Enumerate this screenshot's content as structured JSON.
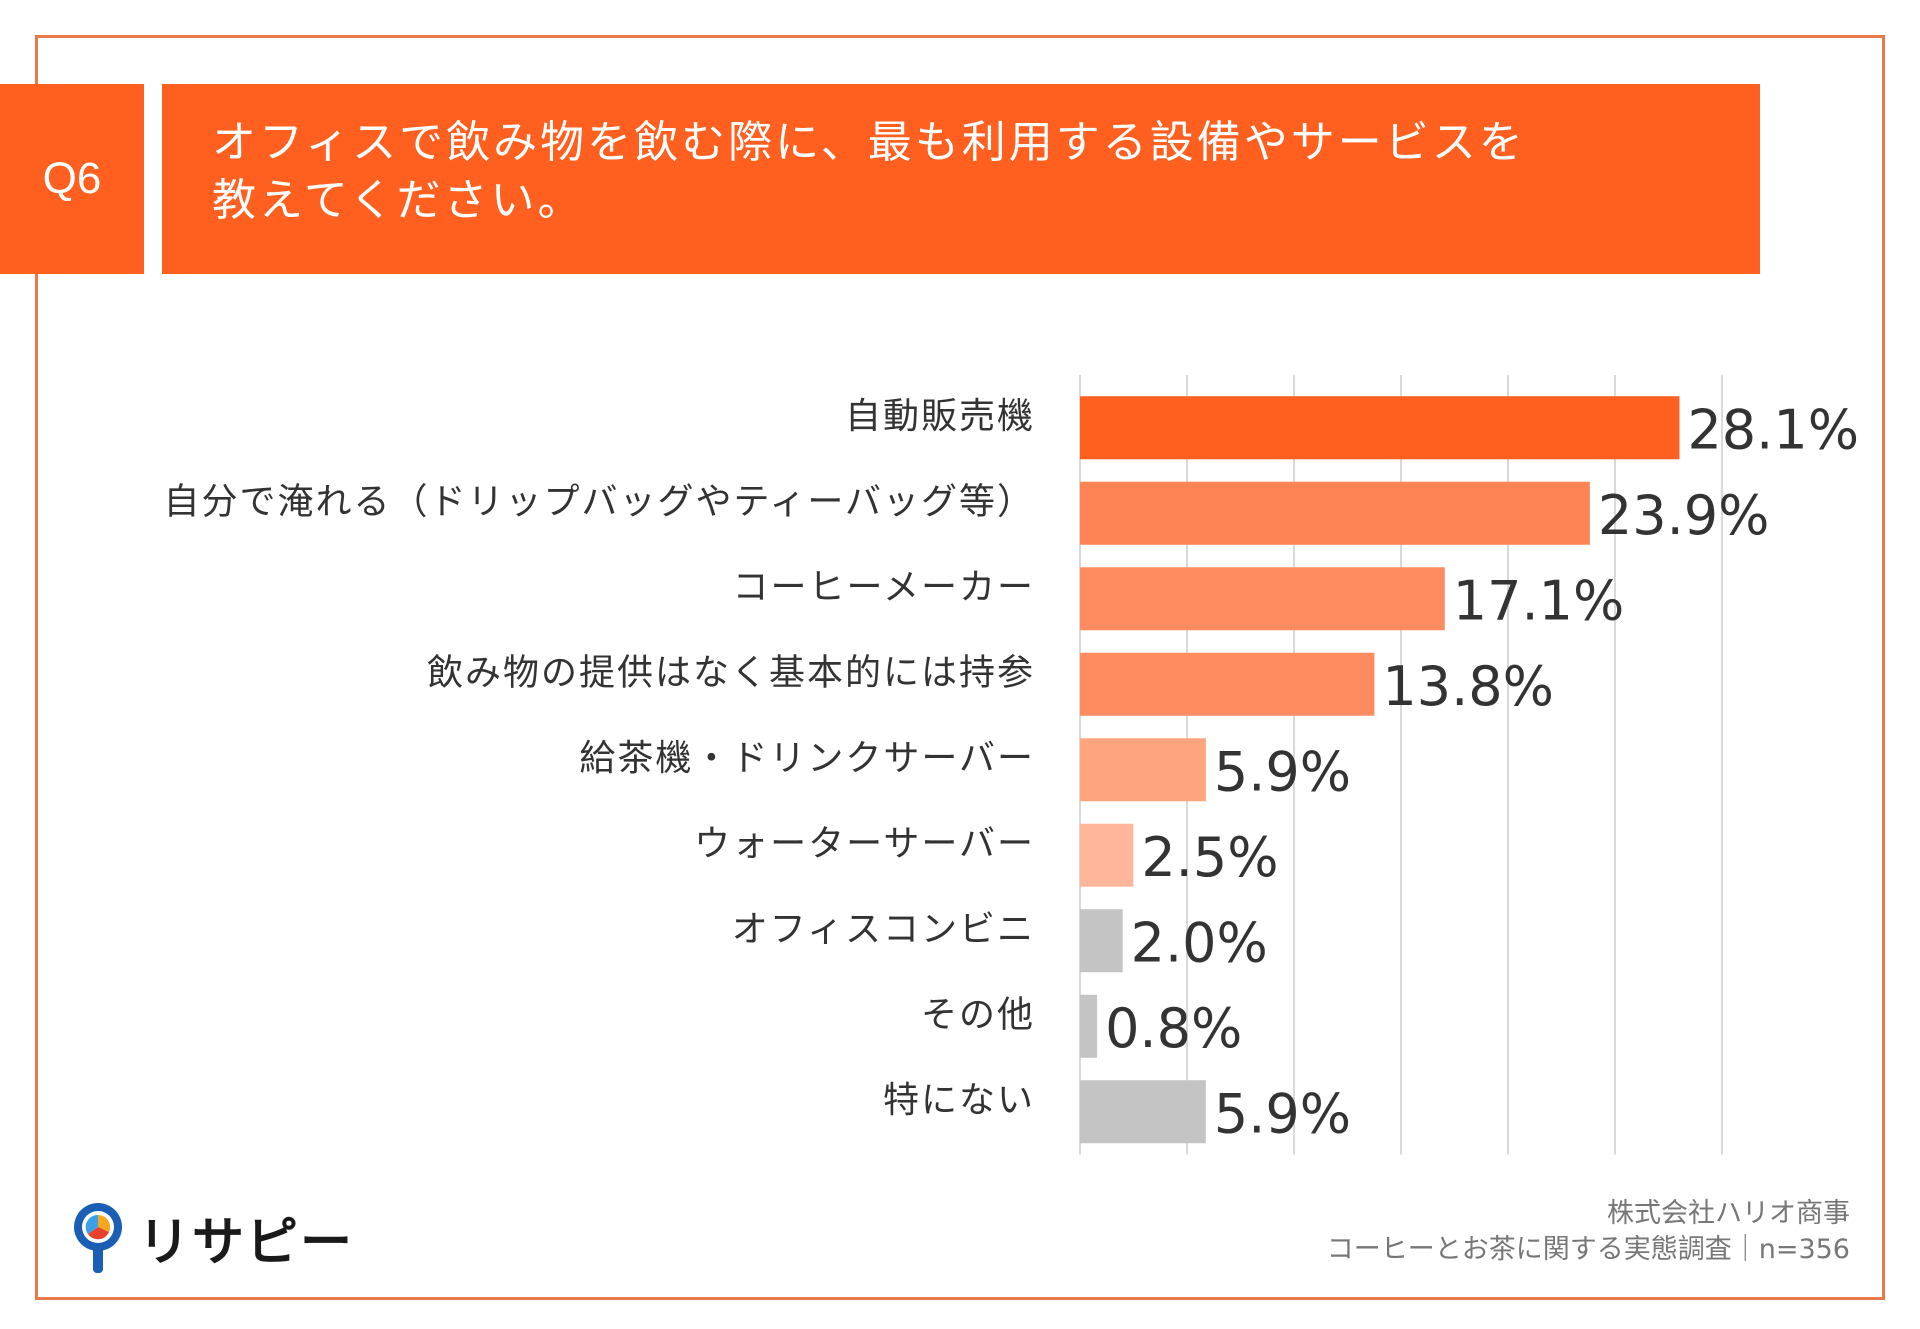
{
  "question": {
    "badge": "Q6",
    "line1": "オフィスで飲み物を飲む際に、最も利用する設備やサービスを",
    "line2": "教えてください。"
  },
  "colors": {
    "frame": "#e8794a",
    "header": "#ff5f1f",
    "bar1": "#ff5f1f",
    "bar2": "#ff8455",
    "bar3": "#ff8c60",
    "bar4": "#ffa57e",
    "bar5": "#ffb79b",
    "gray": "#c4c4c4",
    "grid": "#d9d9d9"
  },
  "chart_data": {
    "type": "bar",
    "orientation": "horizontal",
    "title": "オフィスで飲み物を飲む際に、最も利用する設備やサービスを教えてください。",
    "xlim": [
      0,
      30
    ],
    "grid": true,
    "categories": [
      "自動販売機",
      "自分で淹れる（ドリップバッグやティーバッグ等）",
      "コーヒーメーカー",
      "飲み物の提供はなく基本的には持参",
      "給茶機・ドリンクサーバー",
      "ウォーターサーバー",
      "オフィスコンビニ",
      "その他",
      "特にない"
    ],
    "values": [
      28.1,
      23.9,
      17.1,
      13.8,
      5.9,
      2.5,
      2.0,
      0.8,
      5.9
    ],
    "value_labels": [
      "28.1%",
      "23.9%",
      "17.1%",
      "13.8%",
      "5.9%",
      "2.5%",
      "2.0%",
      "0.8%",
      "5.9%"
    ],
    "bar_colors": [
      "#ff5f1f",
      "#ff8455",
      "#ff8c60",
      "#ff8c60",
      "#ffa57e",
      "#ffb79b",
      "#c4c4c4",
      "#c4c4c4",
      "#c4c4c4"
    ]
  },
  "logo": {
    "text": "リサピー"
  },
  "credit": {
    "company": "株式会社ハリオ商事",
    "survey": "コーヒーとお茶に関する実態調査｜n=356"
  }
}
